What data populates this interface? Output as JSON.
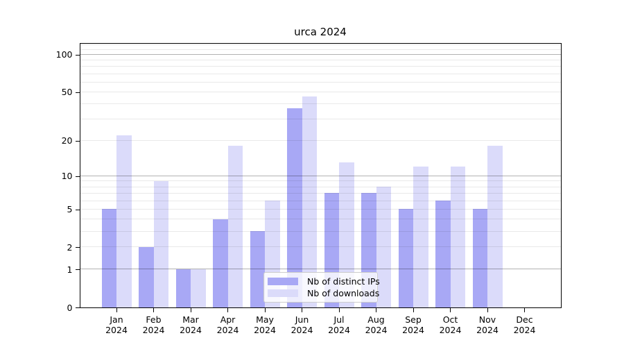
{
  "chart_data": {
    "type": "bar",
    "title": "urca 2024",
    "categories": [
      "Jan",
      "Feb",
      "Mar",
      "Apr",
      "May",
      "Jun",
      "Jul",
      "Aug",
      "Sep",
      "Oct",
      "Nov",
      "Dec"
    ],
    "x_year": "2024",
    "series": [
      {
        "name": "Nb of distinct IPs",
        "color": "#a8a8f5",
        "values": [
          5,
          2,
          1,
          4,
          3,
          37,
          7,
          7,
          5,
          6,
          5,
          0
        ]
      },
      {
        "name": "Nb of downloads",
        "color": "#dbdbfa",
        "values": [
          22,
          9,
          1,
          18,
          6,
          46,
          13,
          8,
          12,
          12,
          18,
          0
        ]
      }
    ],
    "yscale": "log1p",
    "ylim": [
      0,
      125
    ],
    "yticks": [
      0,
      1,
      2,
      5,
      10,
      20,
      50,
      100
    ],
    "ytick_labels": [
      "0",
      "1",
      "2",
      "5",
      "10",
      "20",
      "50",
      "100"
    ],
    "grid_major": [
      1,
      10,
      100
    ],
    "grid_minor": [
      2,
      3,
      4,
      5,
      6,
      7,
      8,
      9,
      20,
      30,
      40,
      50,
      60,
      70,
      80,
      90,
      110,
      120
    ],
    "grid": "on",
    "legend_position": "lower center",
    "xlabel": "",
    "ylabel": ""
  }
}
